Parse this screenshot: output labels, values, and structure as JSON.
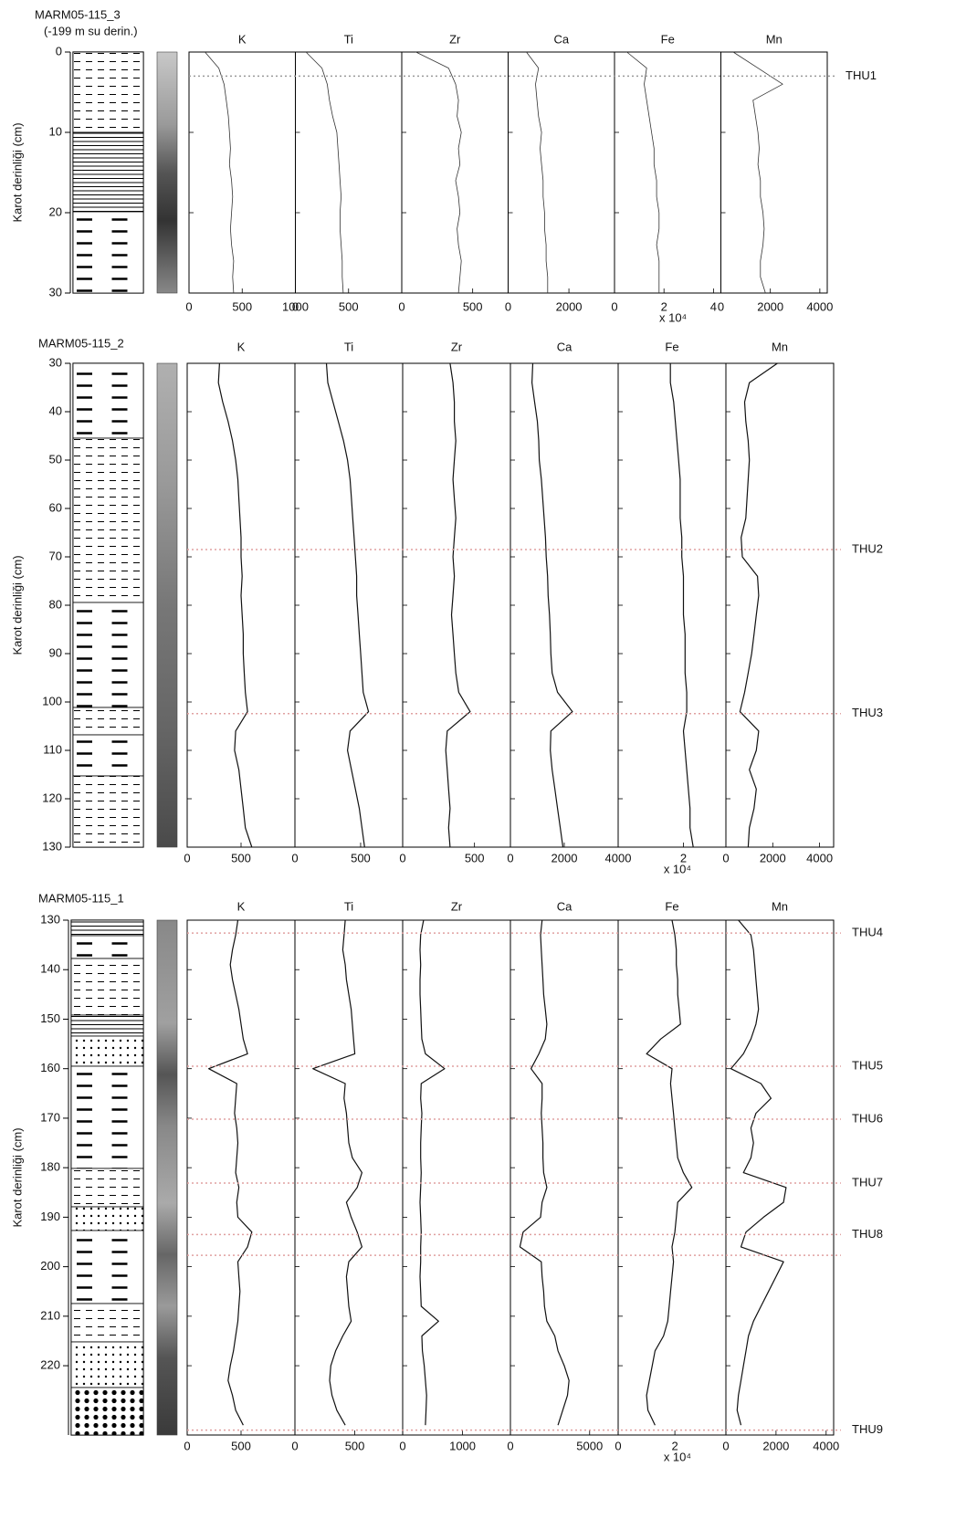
{
  "chart_data": [
    {
      "type": "line",
      "title": "MARM05-115_3",
      "subtitle": "(-199 m su derin.)",
      "y_label": "Karot derinliği (cm)",
      "ylim": [
        0,
        30
      ],
      "yticks": [
        0,
        10,
        20,
        30
      ],
      "x": [
        0,
        2,
        4,
        6,
        8,
        10,
        12,
        14,
        16,
        18,
        20,
        22,
        24,
        26,
        28,
        30
      ],
      "series": [
        {
          "name": "K",
          "color": "#333333",
          "xlim": [
            0,
            1000
          ],
          "xticks": [
            0,
            500,
            1000
          ],
          "values": [
            150,
            280,
            330,
            350,
            370,
            380,
            390,
            380,
            400,
            410,
            400,
            390,
            400,
            420,
            410,
            420
          ]
        },
        {
          "name": "Ti",
          "color": "#333333",
          "xlim": [
            0,
            1000
          ],
          "xticks": [
            0,
            500
          ],
          "values": [
            100,
            250,
            300,
            320,
            350,
            390,
            400,
            410,
            420,
            430,
            420,
            420,
            430,
            440,
            440,
            450
          ]
        },
        {
          "name": "Zr",
          "color": "#333333",
          "xlim": [
            0,
            750
          ],
          "xticks": [
            0,
            500
          ],
          "values": [
            100,
            330,
            380,
            400,
            390,
            420,
            400,
            410,
            380,
            400,
            410,
            390,
            400,
            420,
            410,
            400
          ]
        },
        {
          "name": "Ca",
          "color": "#333333",
          "xlim": [
            0,
            3500
          ],
          "xticks": [
            0,
            2000
          ],
          "values": [
            600,
            1000,
            900,
            950,
            1000,
            1100,
            1050,
            1100,
            1150,
            1150,
            1200,
            1200,
            1250,
            1250,
            1300,
            1300
          ]
        },
        {
          "name": "Fe",
          "color": "#333333",
          "xlim": [
            0,
            4.3
          ],
          "xticks": [
            0,
            2,
            4
          ],
          "unit_label": "x 10⁴",
          "values": [
            0.5,
            1.3,
            1.2,
            1.3,
            1.4,
            1.5,
            1.6,
            1.6,
            1.7,
            1.7,
            1.8,
            1.8,
            1.7,
            1.8,
            1.8,
            1.8
          ]
        },
        {
          "name": "Mn",
          "color": "#333333",
          "xlim": [
            0,
            4300
          ],
          "xticks": [
            0,
            2000,
            4000
          ],
          "values": [
            500,
            1500,
            2500,
            1300,
            1400,
            1500,
            1550,
            1500,
            1600,
            1600,
            1700,
            1750,
            1700,
            1600,
            1600,
            1800
          ]
        }
      ],
      "markers": [
        {
          "label": "THU1",
          "value": 3
        }
      ],
      "marker_color": "#999999"
    },
    {
      "type": "line",
      "title": "MARM05-115_2",
      "y_label": "Karot derinliği (cm)",
      "ylim": [
        30,
        130
      ],
      "yticks": [
        30,
        40,
        50,
        60,
        70,
        80,
        90,
        100,
        110,
        120,
        130
      ],
      "x": [
        30,
        34,
        38,
        42,
        46,
        50,
        54,
        58,
        62,
        66,
        70,
        74,
        78,
        82,
        86,
        90,
        94,
        98,
        102,
        106,
        110,
        114,
        118,
        122,
        126,
        130
      ],
      "series": [
        {
          "name": "K",
          "color": "#111111",
          "xlim": [
            0,
            1000
          ],
          "xticks": [
            0,
            500
          ],
          "values": [
            300,
            290,
            330,
            380,
            420,
            450,
            470,
            480,
            490,
            500,
            500,
            510,
            500,
            510,
            520,
            520,
            530,
            540,
            560,
            450,
            440,
            480,
            500,
            520,
            540,
            600
          ]
        },
        {
          "name": "Ti",
          "color": "#111111",
          "xlim": [
            0,
            820
          ],
          "xticks": [
            0,
            500
          ],
          "values": [
            240,
            250,
            290,
            330,
            370,
            400,
            420,
            430,
            440,
            450,
            460,
            470,
            470,
            480,
            490,
            500,
            510,
            520,
            560,
            420,
            400,
            430,
            460,
            490,
            510,
            530
          ]
        },
        {
          "name": "Zr",
          "color": "#111111",
          "xlim": [
            0,
            750
          ],
          "xticks": [
            0,
            500
          ],
          "values": [
            330,
            350,
            360,
            360,
            370,
            360,
            350,
            360,
            370,
            360,
            350,
            360,
            350,
            340,
            350,
            360,
            370,
            390,
            470,
            310,
            300,
            310,
            320,
            330,
            320,
            330
          ]
        },
        {
          "name": "Ca",
          "color": "#111111",
          "xlim": [
            0,
            4000
          ],
          "xticks": [
            0,
            2000,
            4000
          ],
          "values": [
            830,
            800,
            900,
            1000,
            1050,
            1070,
            1150,
            1200,
            1250,
            1300,
            1330,
            1380,
            1400,
            1450,
            1480,
            1500,
            1550,
            1750,
            2300,
            1500,
            1480,
            1550,
            1650,
            1750,
            1850,
            1950
          ]
        },
        {
          "name": "Fe",
          "color": "#111111",
          "xlim": [
            0,
            3.3
          ],
          "xticks": [
            2
          ],
          "unit_label": "x 10⁴",
          "values": [
            1.6,
            1.6,
            1.7,
            1.75,
            1.8,
            1.85,
            1.9,
            1.9,
            1.9,
            1.95,
            1.95,
            2.0,
            2.0,
            2.0,
            2.05,
            2.05,
            2.05,
            2.1,
            2.1,
            2.0,
            2.05,
            2.1,
            2.15,
            2.2,
            2.2,
            2.3
          ]
        },
        {
          "name": "Mn",
          "color": "#111111",
          "xlim": [
            0,
            4600
          ],
          "xticks": [
            0,
            2000,
            4000
          ],
          "values": [
            2200,
            1000,
            800,
            850,
            950,
            1000,
            950,
            900,
            850,
            650,
            700,
            1350,
            1400,
            1300,
            1200,
            1100,
            950,
            800,
            600,
            1400,
            1300,
            1000,
            1300,
            1200,
            1000,
            950
          ]
        }
      ],
      "markers": [
        {
          "label": "THU2",
          "value": 68.5
        },
        {
          "label": "THU3",
          "value": 102.4
        }
      ],
      "marker_color": "#e0a0a0"
    },
    {
      "type": "line",
      "title": "MARM05-115_1",
      "y_label": "Karot derinliği (cm)",
      "ylim": [
        130,
        234
      ],
      "yticks": [
        130,
        140,
        150,
        160,
        170,
        180,
        190,
        200,
        210,
        220
      ],
      "x": [
        130,
        133,
        136,
        139,
        142,
        145,
        148,
        151,
        154,
        157,
        160,
        163,
        166,
        169,
        172,
        175,
        178,
        181,
        184,
        187,
        190,
        193,
        196,
        199,
        202,
        205,
        208,
        211,
        214,
        217,
        220,
        223,
        226,
        229,
        232
      ],
      "series": [
        {
          "name": "K",
          "color": "#111111",
          "xlim": [
            0,
            1000
          ],
          "xticks": [
            0,
            500
          ],
          "values": [
            470,
            450,
            420,
            400,
            420,
            450,
            480,
            500,
            520,
            560,
            200,
            460,
            450,
            440,
            460,
            470,
            460,
            450,
            480,
            460,
            470,
            600,
            560,
            470,
            480,
            490,
            480,
            470,
            450,
            430,
            400,
            380,
            420,
            450,
            520
          ]
        },
        {
          "name": "Ti",
          "color": "#111111",
          "xlim": [
            0,
            900
          ],
          "xticks": [
            0,
            500
          ],
          "values": [
            420,
            410,
            400,
            420,
            430,
            450,
            470,
            480,
            490,
            500,
            150,
            420,
            410,
            430,
            440,
            450,
            480,
            560,
            520,
            430,
            470,
            520,
            560,
            450,
            430,
            440,
            450,
            470,
            400,
            340,
            300,
            290,
            310,
            350,
            420
          ]
        },
        {
          "name": "Zr",
          "color": "#111111",
          "xlim": [
            0,
            1800
          ],
          "xticks": [
            0,
            1000
          ],
          "values": [
            350,
            300,
            290,
            300,
            290,
            290,
            300,
            310,
            320,
            380,
            700,
            310,
            300,
            320,
            310,
            300,
            300,
            310,
            300,
            290,
            300,
            310,
            300,
            300,
            290,
            300,
            310,
            600,
            320,
            330,
            360,
            380,
            400,
            390,
            380
          ]
        },
        {
          "name": "Ca",
          "color": "#111111",
          "xlim": [
            0,
            6800
          ],
          "xticks": [
            0,
            5000
          ],
          "values": [
            2000,
            1900,
            1950,
            2000,
            2050,
            2100,
            2200,
            2300,
            2200,
            1800,
            1300,
            2000,
            2000,
            1950,
            2000,
            2050,
            2050,
            2100,
            2300,
            2000,
            1900,
            800,
            600,
            1950,
            2000,
            2100,
            2150,
            2300,
            2800,
            3000,
            3400,
            3700,
            3600,
            3300,
            3000
          ]
        },
        {
          "name": "Fe",
          "color": "#111111",
          "xlim": [
            0,
            3.8
          ],
          "xticks": [
            0,
            2
          ],
          "unit_label": "x 10⁴",
          "values": [
            1.9,
            2.0,
            2.05,
            2.05,
            2.1,
            2.1,
            2.15,
            2.2,
            1.5,
            1.0,
            1.9,
            1.85,
            1.9,
            1.95,
            2.0,
            2.05,
            2.1,
            2.3,
            2.6,
            2.1,
            2.05,
            2.0,
            1.9,
            1.95,
            1.9,
            1.85,
            1.8,
            1.75,
            1.6,
            1.3,
            1.2,
            1.1,
            1.0,
            1.05,
            1.3
          ]
        },
        {
          "name": "Mn",
          "color": "#111111",
          "xlim": [
            0,
            4300
          ],
          "xticks": [
            0,
            2000,
            4000
          ],
          "values": [
            500,
            1000,
            1100,
            1150,
            1200,
            1250,
            1300,
            1200,
            1000,
            700,
            200,
            1400,
            1800,
            1200,
            1000,
            1100,
            1000,
            700,
            2400,
            2300,
            1500,
            800,
            600,
            2300,
            2000,
            1700,
            1400,
            1100,
            900,
            800,
            700,
            600,
            500,
            450,
            600
          ]
        }
      ],
      "markers": [
        {
          "label": "THU4",
          "value": 132.6
        },
        {
          "label": "THU5",
          "value": 159.5
        },
        {
          "label": "THU6",
          "value": 170.2
        },
        {
          "label": "THU7",
          "value": 183.1
        },
        {
          "label": "THU8",
          "value": 193.5
        },
        {
          "value": 197.7
        },
        {
          "label": "THU9",
          "value": 233
        }
      ],
      "marker_color": "#e0a0a0"
    }
  ]
}
